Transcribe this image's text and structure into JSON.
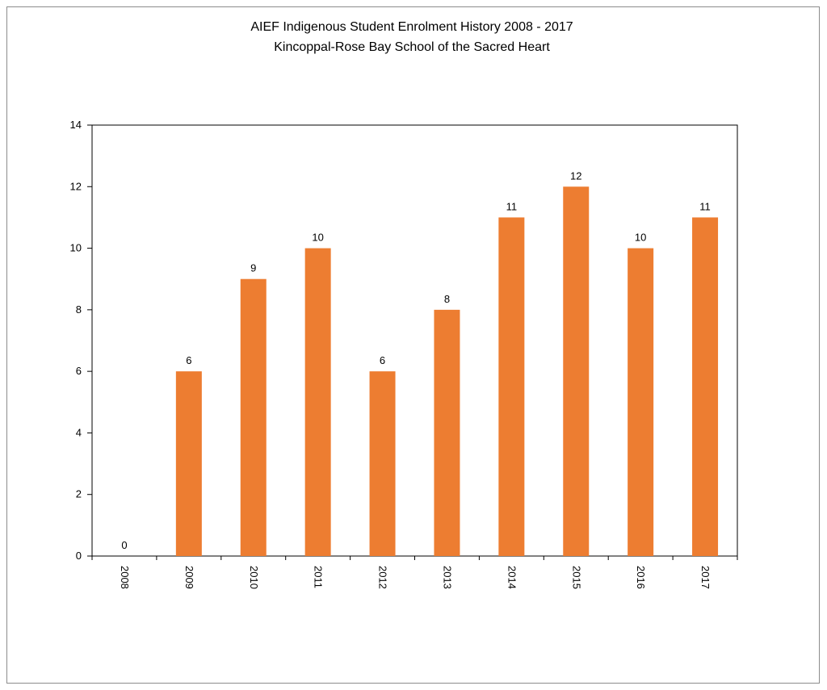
{
  "chart_data": {
    "type": "bar",
    "title": "AIEF Indigenous Student Enrolment History 2008  - 2017",
    "subtitle": "Kincoppal-Rose Bay School of the Sacred Heart",
    "xlabel": "",
    "ylabel": "",
    "categories": [
      "2008",
      "2009",
      "2010",
      "2011",
      "2012",
      "2013",
      "2014",
      "2015",
      "2016",
      "2017"
    ],
    "values": [
      0,
      6,
      9,
      10,
      6,
      8,
      11,
      12,
      10,
      11
    ],
    "ylim": [
      0,
      14
    ],
    "yticks": [
      0,
      2,
      4,
      6,
      8,
      10,
      12,
      14
    ],
    "data_labels": true,
    "grid": false,
    "legend": "none",
    "bar_color": "#ED7D31",
    "axis_color": "#000000",
    "x_tick_rotation": "vertical"
  }
}
